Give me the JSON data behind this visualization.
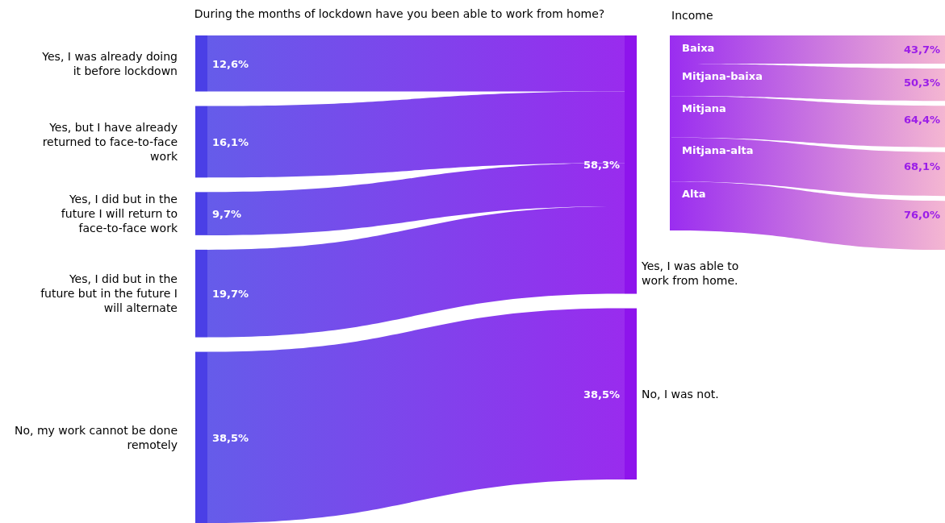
{
  "chart_data": [
    {
      "type": "other",
      "title": "During the months of lockdown have you been able to work from home?",
      "categories": [
        "Yes, I was already doing it before lockdown",
        "Yes, but I have already returned to face-to-face work",
        "Yes, I did but in the future I will return to face-to-face work",
        "Yes, I did but in the future but in the future I will alternate",
        "No, my work cannot be done remotely"
      ],
      "colors": [
        "#4a3fe6",
        "#4a3fe6",
        "#4a3fe6",
        "#4a3fe6",
        "#4a3fe6"
      ],
      "series": [
        {
          "name": "Yes, I was able to work from home.",
          "color": "#8e14ec",
          "values": [
            12.6,
            16.1,
            9.7,
            19.7,
            null
          ],
          "value_labels": [
            "12,6%",
            "16,1%",
            "9,7%",
            "19,7%",
            null
          ]
        },
        {
          "name": "No, I was not.",
          "color": "#8e14ec",
          "values": [
            null,
            null,
            null,
            null,
            38.5
          ],
          "value_labels": [
            null,
            null,
            null,
            null,
            "38,5%"
          ]
        }
      ],
      "totals": [
        "58,3%",
        "38,5%"
      ]
    },
    {
      "type": "other",
      "title": "Income",
      "categories": [
        "Baixa",
        "Mitjana-baixa",
        "Mitjana",
        "Mitjana-alta",
        "Alta"
      ],
      "values": [
        43.7,
        50.3,
        64.4,
        68.1,
        76.0
      ],
      "value_labels": [
        "43,7%",
        "50,3%",
        "64,4%",
        "68,1%",
        "76,0%"
      ],
      "color": "#f4b6d2"
    }
  ]
}
